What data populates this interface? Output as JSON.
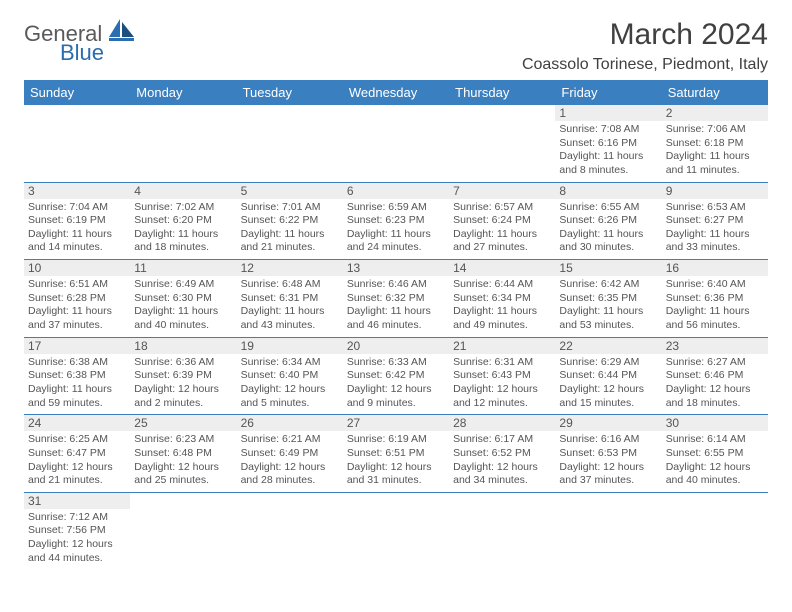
{
  "logo": {
    "general": "Genera",
    "l": "l",
    "blue": "Blue"
  },
  "title": "March 2024",
  "location": "Coassolo Torinese, Piedmont, Italy",
  "day_headers": [
    "Sunday",
    "Monday",
    "Tuesday",
    "Wednesday",
    "Thursday",
    "Friday",
    "Saturday"
  ],
  "colors": {
    "header_bg": "#3a7fbf",
    "daynum_bg": "#eeeeee",
    "rule": "#3a7fbf"
  },
  "weeks": [
    [
      null,
      null,
      null,
      null,
      null,
      {
        "n": "1",
        "sr": "Sunrise: 7:08 AM",
        "ss": "Sunset: 6:16 PM",
        "d1": "Daylight: 11 hours",
        "d2": "and 8 minutes."
      },
      {
        "n": "2",
        "sr": "Sunrise: 7:06 AM",
        "ss": "Sunset: 6:18 PM",
        "d1": "Daylight: 11 hours",
        "d2": "and 11 minutes."
      }
    ],
    [
      {
        "n": "3",
        "sr": "Sunrise: 7:04 AM",
        "ss": "Sunset: 6:19 PM",
        "d1": "Daylight: 11 hours",
        "d2": "and 14 minutes."
      },
      {
        "n": "4",
        "sr": "Sunrise: 7:02 AM",
        "ss": "Sunset: 6:20 PM",
        "d1": "Daylight: 11 hours",
        "d2": "and 18 minutes."
      },
      {
        "n": "5",
        "sr": "Sunrise: 7:01 AM",
        "ss": "Sunset: 6:22 PM",
        "d1": "Daylight: 11 hours",
        "d2": "and 21 minutes."
      },
      {
        "n": "6",
        "sr": "Sunrise: 6:59 AM",
        "ss": "Sunset: 6:23 PM",
        "d1": "Daylight: 11 hours",
        "d2": "and 24 minutes."
      },
      {
        "n": "7",
        "sr": "Sunrise: 6:57 AM",
        "ss": "Sunset: 6:24 PM",
        "d1": "Daylight: 11 hours",
        "d2": "and 27 minutes."
      },
      {
        "n": "8",
        "sr": "Sunrise: 6:55 AM",
        "ss": "Sunset: 6:26 PM",
        "d1": "Daylight: 11 hours",
        "d2": "and 30 minutes."
      },
      {
        "n": "9",
        "sr": "Sunrise: 6:53 AM",
        "ss": "Sunset: 6:27 PM",
        "d1": "Daylight: 11 hours",
        "d2": "and 33 minutes."
      }
    ],
    [
      {
        "n": "10",
        "sr": "Sunrise: 6:51 AM",
        "ss": "Sunset: 6:28 PM",
        "d1": "Daylight: 11 hours",
        "d2": "and 37 minutes."
      },
      {
        "n": "11",
        "sr": "Sunrise: 6:49 AM",
        "ss": "Sunset: 6:30 PM",
        "d1": "Daylight: 11 hours",
        "d2": "and 40 minutes."
      },
      {
        "n": "12",
        "sr": "Sunrise: 6:48 AM",
        "ss": "Sunset: 6:31 PM",
        "d1": "Daylight: 11 hours",
        "d2": "and 43 minutes."
      },
      {
        "n": "13",
        "sr": "Sunrise: 6:46 AM",
        "ss": "Sunset: 6:32 PM",
        "d1": "Daylight: 11 hours",
        "d2": "and 46 minutes."
      },
      {
        "n": "14",
        "sr": "Sunrise: 6:44 AM",
        "ss": "Sunset: 6:34 PM",
        "d1": "Daylight: 11 hours",
        "d2": "and 49 minutes."
      },
      {
        "n": "15",
        "sr": "Sunrise: 6:42 AM",
        "ss": "Sunset: 6:35 PM",
        "d1": "Daylight: 11 hours",
        "d2": "and 53 minutes."
      },
      {
        "n": "16",
        "sr": "Sunrise: 6:40 AM",
        "ss": "Sunset: 6:36 PM",
        "d1": "Daylight: 11 hours",
        "d2": "and 56 minutes."
      }
    ],
    [
      {
        "n": "17",
        "sr": "Sunrise: 6:38 AM",
        "ss": "Sunset: 6:38 PM",
        "d1": "Daylight: 11 hours",
        "d2": "and 59 minutes."
      },
      {
        "n": "18",
        "sr": "Sunrise: 6:36 AM",
        "ss": "Sunset: 6:39 PM",
        "d1": "Daylight: 12 hours",
        "d2": "and 2 minutes."
      },
      {
        "n": "19",
        "sr": "Sunrise: 6:34 AM",
        "ss": "Sunset: 6:40 PM",
        "d1": "Daylight: 12 hours",
        "d2": "and 5 minutes."
      },
      {
        "n": "20",
        "sr": "Sunrise: 6:33 AM",
        "ss": "Sunset: 6:42 PM",
        "d1": "Daylight: 12 hours",
        "d2": "and 9 minutes."
      },
      {
        "n": "21",
        "sr": "Sunrise: 6:31 AM",
        "ss": "Sunset: 6:43 PM",
        "d1": "Daylight: 12 hours",
        "d2": "and 12 minutes."
      },
      {
        "n": "22",
        "sr": "Sunrise: 6:29 AM",
        "ss": "Sunset: 6:44 PM",
        "d1": "Daylight: 12 hours",
        "d2": "and 15 minutes."
      },
      {
        "n": "23",
        "sr": "Sunrise: 6:27 AM",
        "ss": "Sunset: 6:46 PM",
        "d1": "Daylight: 12 hours",
        "d2": "and 18 minutes."
      }
    ],
    [
      {
        "n": "24",
        "sr": "Sunrise: 6:25 AM",
        "ss": "Sunset: 6:47 PM",
        "d1": "Daylight: 12 hours",
        "d2": "and 21 minutes."
      },
      {
        "n": "25",
        "sr": "Sunrise: 6:23 AM",
        "ss": "Sunset: 6:48 PM",
        "d1": "Daylight: 12 hours",
        "d2": "and 25 minutes."
      },
      {
        "n": "26",
        "sr": "Sunrise: 6:21 AM",
        "ss": "Sunset: 6:49 PM",
        "d1": "Daylight: 12 hours",
        "d2": "and 28 minutes."
      },
      {
        "n": "27",
        "sr": "Sunrise: 6:19 AM",
        "ss": "Sunset: 6:51 PM",
        "d1": "Daylight: 12 hours",
        "d2": "and 31 minutes."
      },
      {
        "n": "28",
        "sr": "Sunrise: 6:17 AM",
        "ss": "Sunset: 6:52 PM",
        "d1": "Daylight: 12 hours",
        "d2": "and 34 minutes."
      },
      {
        "n": "29",
        "sr": "Sunrise: 6:16 AM",
        "ss": "Sunset: 6:53 PM",
        "d1": "Daylight: 12 hours",
        "d2": "and 37 minutes."
      },
      {
        "n": "30",
        "sr": "Sunrise: 6:14 AM",
        "ss": "Sunset: 6:55 PM",
        "d1": "Daylight: 12 hours",
        "d2": "and 40 minutes."
      }
    ],
    [
      {
        "n": "31",
        "sr": "Sunrise: 7:12 AM",
        "ss": "Sunset: 7:56 PM",
        "d1": "Daylight: 12 hours",
        "d2": "and 44 minutes."
      },
      null,
      null,
      null,
      null,
      null,
      null
    ]
  ]
}
